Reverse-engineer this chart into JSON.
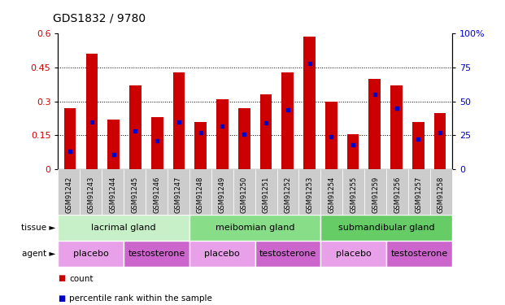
{
  "title": "GDS1832 / 9780",
  "samples": [
    "GSM91242",
    "GSM91243",
    "GSM91244",
    "GSM91245",
    "GSM91246",
    "GSM91247",
    "GSM91248",
    "GSM91249",
    "GSM91250",
    "GSM91251",
    "GSM91252",
    "GSM91253",
    "GSM91254",
    "GSM91255",
    "GSM91259",
    "GSM91256",
    "GSM91257",
    "GSM91258"
  ],
  "counts": [
    0.27,
    0.51,
    0.22,
    0.37,
    0.23,
    0.43,
    0.21,
    0.31,
    0.27,
    0.33,
    0.43,
    0.585,
    0.3,
    0.155,
    0.4,
    0.37,
    0.21,
    0.25
  ],
  "percentile_pct": [
    13,
    35,
    11,
    28,
    21,
    35,
    27,
    32,
    26,
    34,
    44,
    78,
    24,
    18,
    55,
    45,
    22,
    27
  ],
  "bar_color": "#cc0000",
  "marker_color": "#0000cc",
  "ylim_left": [
    0,
    0.6
  ],
  "ylim_right": [
    0,
    100
  ],
  "yticks_left": [
    0,
    0.15,
    0.3,
    0.45,
    0.6
  ],
  "ytick_labels_left": [
    "0",
    "0.15",
    "0.3",
    "0.45",
    "0.6"
  ],
  "yticks_right": [
    0,
    25,
    50,
    75,
    100
  ],
  "ytick_labels_right": [
    "0",
    "25",
    "50",
    "75",
    "100%"
  ],
  "tissue_groups": [
    {
      "label": "lacrimal gland",
      "start": 0,
      "end": 6,
      "color": "#c8f0c8"
    },
    {
      "label": "meibomian gland",
      "start": 6,
      "end": 12,
      "color": "#88dd88"
    },
    {
      "label": "submandibular gland",
      "start": 12,
      "end": 18,
      "color": "#66cc66"
    }
  ],
  "agent_groups": [
    {
      "label": "placebo",
      "start": 0,
      "end": 3,
      "color": "#e8a0e8"
    },
    {
      "label": "testosterone",
      "start": 3,
      "end": 6,
      "color": "#cc66cc"
    },
    {
      "label": "placebo",
      "start": 6,
      "end": 9,
      "color": "#e8a0e8"
    },
    {
      "label": "testosterone",
      "start": 9,
      "end": 12,
      "color": "#cc66cc"
    },
    {
      "label": "placebo",
      "start": 12,
      "end": 15,
      "color": "#e8a0e8"
    },
    {
      "label": "testosterone",
      "start": 15,
      "end": 18,
      "color": "#cc66cc"
    }
  ],
  "legend_count_color": "#cc0000",
  "legend_pct_color": "#0000cc",
  "tick_label_color_left": "#cc0000",
  "tick_label_color_right": "#0000cc",
  "xticklabel_bg": "#cccccc"
}
